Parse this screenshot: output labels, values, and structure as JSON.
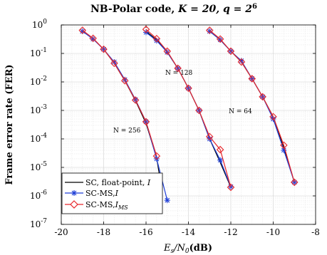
{
  "chart_data": {
    "type": "line",
    "title": "NB-Polar code, K = 20, q = 2⁶",
    "title_main": "NB-Polar code,",
    "title_math": "K = 20, q = 2",
    "title_exp": "6",
    "xlabel_main": "E",
    "xlabel_sub": "s",
    "xlabel_mid": "/N",
    "xlabel_sub2": "0",
    "xlabel_unit": "(dB)",
    "ylabel": "Frame error rate (FER)",
    "xlim": [
      -20,
      -8
    ],
    "ylim_log10": [
      -7,
      0
    ],
    "yscale": "log",
    "grid": true,
    "legend_position": "bottom-left",
    "x_ticks": [
      "-20",
      "-18",
      "-16",
      "-14",
      "-12",
      "-10",
      "-8"
    ],
    "y_tick_base": "10",
    "y_tick_exps": [
      "-7",
      "-6",
      "-5",
      "-4",
      "-3",
      "-2",
      "-1",
      "0"
    ],
    "legend": [
      {
        "label": "SC, float-point, ",
        "math": "I",
        "sub": ""
      },
      {
        "label": "SC-MS,",
        "math": "I",
        "sub": ""
      },
      {
        "label": "SC-MS,",
        "math": "I",
        "sub": "MS"
      }
    ],
    "series_styles": [
      {
        "color": "#000000",
        "marker": "none"
      },
      {
        "color": "#1f3fd6",
        "marker": "star"
      },
      {
        "color": "#e8262b",
        "marker": "diamond"
      }
    ],
    "annotations": [
      {
        "text": "N = 256",
        "x": -16.9,
        "y": 0.00017
      },
      {
        "text": "N = 128",
        "x": -14.45,
        "y": 0.018
      },
      {
        "text": "N = 64",
        "x": -11.55,
        "y": 0.0008
      }
    ],
    "groups": [
      {
        "N": 256,
        "series": [
          {
            "x": [
              -19,
              -18.5,
              -18,
              -17.5,
              -17,
              -16.5,
              -16,
              -15.5,
              -15.25
            ],
            "y": [
              0.6,
              0.33,
              0.14,
              0.045,
              0.011,
              0.0022,
              0.00035,
              2.2e-05,
              1.5e-06
            ]
          },
          {
            "x": [
              -19,
              -18.5,
              -18,
              -17.5,
              -17,
              -16.5,
              -16,
              -15.5,
              -15
            ],
            "y": [
              0.6,
              0.32,
              0.14,
              0.05,
              0.012,
              0.0024,
              0.0004,
              2e-05,
              7e-07
            ]
          },
          {
            "x": [
              -19,
              -18.5,
              -18,
              -17.5,
              -17,
              -16.5,
              -16,
              -15.5
            ],
            "y": [
              0.65,
              0.34,
              0.14,
              0.045,
              0.011,
              0.0023,
              0.0004,
              2.5e-05
            ]
          }
        ]
      },
      {
        "N": 128,
        "series": [
          {
            "x": [
              -16,
              -15.5,
              -15,
              -14.5,
              -14,
              -13.5,
              -13,
              -12.5,
              -12
            ],
            "y": [
              0.6,
              0.3,
              0.11,
              0.03,
              0.006,
              0.001,
              0.0001,
              1.5e-05,
              2e-06
            ]
          },
          {
            "x": [
              -16,
              -15.5,
              -15,
              -14.5,
              -14,
              -13.5,
              -13,
              -12.5,
              -12
            ],
            "y": [
              0.55,
              0.28,
              0.11,
              0.03,
              0.006,
              0.001,
              0.0001,
              1.8e-05,
              2.1e-06
            ]
          },
          {
            "x": [
              -16,
              -15.5,
              -15,
              -14.5,
              -14,
              -13.5,
              -13,
              -12.5,
              -12
            ],
            "y": [
              0.7,
              0.33,
              0.12,
              0.03,
              0.006,
              0.001,
              0.00012,
              4.2e-05,
              2e-06
            ]
          }
        ]
      },
      {
        "N": 64,
        "series": [
          {
            "x": [
              -13,
              -12.5,
              -12,
              -11.5,
              -11,
              -10.5,
              -10,
              -9.5,
              -9
            ],
            "y": [
              0.6,
              0.3,
              0.12,
              0.05,
              0.013,
              0.003,
              0.0006,
              5e-05,
              3e-06
            ]
          },
          {
            "x": [
              -13,
              -12.5,
              -12,
              -11.5,
              -11,
              -10.5,
              -10,
              -9.5,
              -9
            ],
            "y": [
              0.6,
              0.3,
              0.12,
              0.055,
              0.013,
              0.003,
              0.0005,
              4e-05,
              3e-06
            ]
          },
          {
            "x": [
              -13,
              -12.5,
              -12,
              -11.5,
              -11,
              -10.5,
              -10,
              -9.5,
              -9
            ],
            "y": [
              0.65,
              0.32,
              0.12,
              0.05,
              0.013,
              0.003,
              0.0006,
              6e-05,
              3e-06
            ]
          }
        ]
      }
    ]
  }
}
